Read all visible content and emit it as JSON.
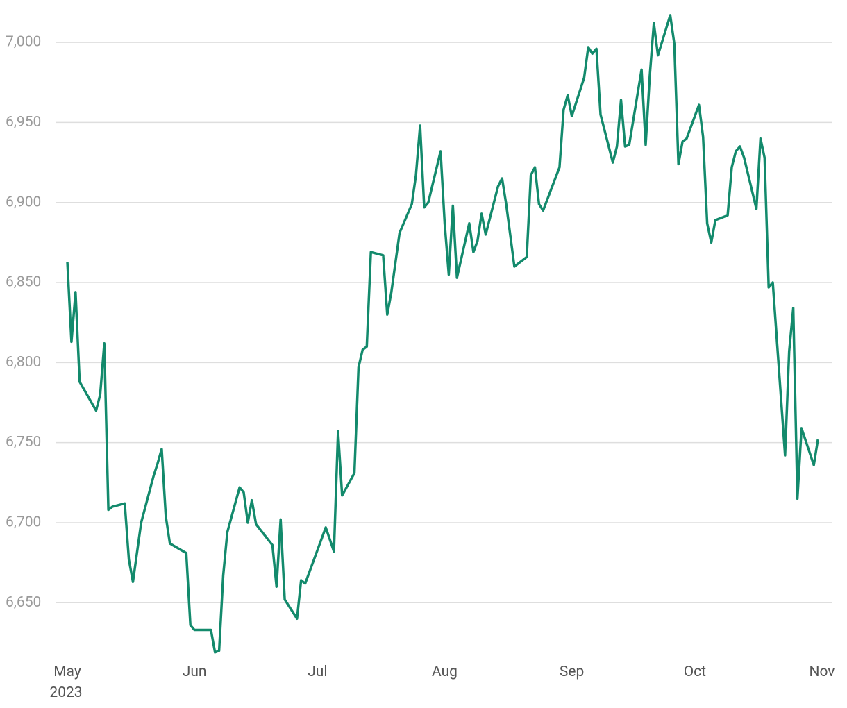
{
  "chart_data": {
    "type": "line",
    "x": [
      "2023-05-01",
      "2023-05-02",
      "2023-05-03",
      "2023-05-04",
      "2023-05-08",
      "2023-05-09",
      "2023-05-10",
      "2023-05-11",
      "2023-05-12",
      "2023-05-15",
      "2023-05-16",
      "2023-05-17",
      "2023-05-19",
      "2023-05-22",
      "2023-05-23",
      "2023-05-24",
      "2023-05-25",
      "2023-05-26",
      "2023-05-30",
      "2023-05-31",
      "2023-06-01",
      "2023-06-05",
      "2023-06-06",
      "2023-06-07",
      "2023-06-08",
      "2023-06-09",
      "2023-06-12",
      "2023-06-13",
      "2023-06-14",
      "2023-06-15",
      "2023-06-16",
      "2023-06-20",
      "2023-06-21",
      "2023-06-22",
      "2023-06-23",
      "2023-06-26",
      "2023-06-27",
      "2023-06-28",
      "2023-07-03",
      "2023-07-05",
      "2023-07-06",
      "2023-07-07",
      "2023-07-10",
      "2023-07-11",
      "2023-07-12",
      "2023-07-13",
      "2023-07-14",
      "2023-07-17",
      "2023-07-18",
      "2023-07-19",
      "2023-07-21",
      "2023-07-24",
      "2023-07-25",
      "2023-07-26",
      "2023-07-27",
      "2023-07-28",
      "2023-07-31",
      "2023-08-01",
      "2023-08-02",
      "2023-08-03",
      "2023-08-04",
      "2023-08-07",
      "2023-08-08",
      "2023-08-09",
      "2023-08-10",
      "2023-08-11",
      "2023-08-14",
      "2023-08-15",
      "2023-08-16",
      "2023-08-18",
      "2023-08-21",
      "2023-08-22",
      "2023-08-23",
      "2023-08-24",
      "2023-08-25",
      "2023-08-29",
      "2023-08-30",
      "2023-08-31",
      "2023-09-01",
      "2023-09-04",
      "2023-09-05",
      "2023-09-06",
      "2023-09-07",
      "2023-09-08",
      "2023-09-11",
      "2023-09-12",
      "2023-09-13",
      "2023-09-14",
      "2023-09-15",
      "2023-09-18",
      "2023-09-19",
      "2023-09-20",
      "2023-09-21",
      "2023-09-22",
      "2023-09-25",
      "2023-09-26",
      "2023-09-27",
      "2023-09-28",
      "2023-09-29",
      "2023-10-02",
      "2023-10-03",
      "2023-10-04",
      "2023-10-05",
      "2023-10-06",
      "2023-10-09",
      "2023-10-10",
      "2023-10-11",
      "2023-10-12",
      "2023-10-13",
      "2023-10-16",
      "2023-10-17",
      "2023-10-18",
      "2023-10-19",
      "2023-10-20",
      "2023-10-23",
      "2023-10-24",
      "2023-10-25",
      "2023-10-26",
      "2023-10-27",
      "2023-10-30",
      "2023-10-31"
    ],
    "series": [
      {
        "color": "#138a6c",
        "values": [
          6863,
          6813,
          6844,
          6788,
          6770,
          6780,
          6812,
          6708,
          6710,
          6712,
          6677,
          6663,
          6700,
          6729,
          6737,
          6746,
          6704,
          6687,
          6681,
          6636,
          6633,
          6633,
          6619,
          6620,
          6667,
          6694,
          6722,
          6719,
          6700,
          6714,
          6699,
          6686,
          6660,
          6702,
          6652,
          6640,
          6664,
          6662,
          6697,
          6682,
          6757,
          6717,
          6731,
          6797,
          6808,
          6810,
          6869,
          6867,
          6830,
          6844,
          6881,
          6899,
          6917,
          6948,
          6897,
          6900,
          6932,
          6887,
          6855,
          6898,
          6853,
          6887,
          6869,
          6876,
          6893,
          6880,
          6910,
          6915,
          6899,
          6860,
          6866,
          6917,
          6922,
          6899,
          6895,
          6922,
          6958,
          6967,
          6954,
          6978,
          6997,
          6993,
          6996,
          6955,
          6925,
          6935,
          6964,
          6935,
          6936,
          6983,
          6936,
          6979,
          7012,
          6992,
          7017,
          6999,
          6924,
          6938,
          6940,
          6961,
          6941,
          6887,
          6875,
          6889,
          6892,
          6922,
          6932,
          6935,
          6928,
          6896,
          6940,
          6928,
          6847,
          6850,
          6742,
          6807,
          6834,
          6715,
          6759,
          6736,
          6752
        ]
      }
    ],
    "xlim": [
      "2023-05-01",
      "2023-11-01"
    ],
    "xticks": [
      {
        "value": "2023-05-01",
        "label": "May"
      },
      {
        "value": "2023-06-01",
        "label": "Jun"
      },
      {
        "value": "2023-07-01",
        "label": "Jul"
      },
      {
        "value": "2023-08-01",
        "label": "Aug"
      },
      {
        "value": "2023-09-01",
        "label": "Sep"
      },
      {
        "value": "2023-10-01",
        "label": "Oct"
      },
      {
        "value": "2023-11-01",
        "label": "Nov"
      }
    ],
    "x_year_label": "2023",
    "ylim": [
      6615,
      7020
    ],
    "yticks": [
      {
        "value": 6650,
        "label": "6,650"
      },
      {
        "value": 6700,
        "label": "6,700"
      },
      {
        "value": 6750,
        "label": "6,750"
      },
      {
        "value": 6800,
        "label": "6,800"
      },
      {
        "value": 6850,
        "label": "6,850"
      },
      {
        "value": 6900,
        "label": "6,900"
      },
      {
        "value": 6950,
        "label": "6,950"
      },
      {
        "value": 7000,
        "label": "7,000"
      }
    ],
    "grid": true
  }
}
